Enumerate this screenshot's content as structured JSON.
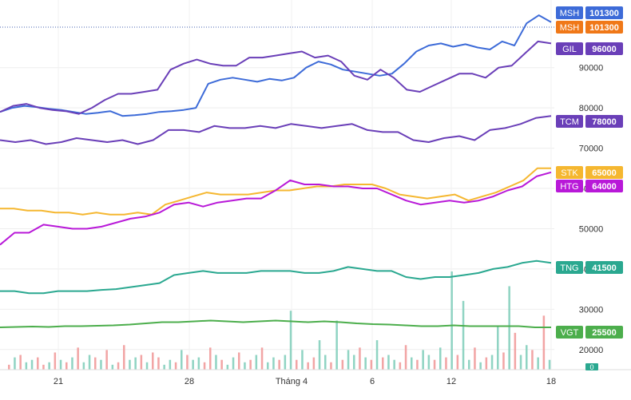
{
  "chart_data": {
    "type": "line",
    "x_ticks": [
      "21",
      "28",
      "Tháng 4",
      "6",
      "12",
      "18"
    ],
    "y_ticks": [
      20000,
      30000,
      40000,
      50000,
      60000,
      70000,
      80000,
      90000
    ],
    "y_tick_labels": [
      "20000",
      "30000",
      "40000",
      "50000",
      "60000",
      "70000",
      "80000",
      "90000"
    ],
    "ylim": [
      15000,
      106000
    ],
    "grid": true,
    "series": [
      {
        "name": "MSH",
        "color": "#3d6bd8",
        "last_value": "101300",
        "values": [
          79000,
          80000,
          80500,
          80200,
          79800,
          79500,
          79000,
          78500,
          78800,
          79200,
          78000,
          78200,
          78500,
          79000,
          79200,
          79500,
          80000,
          86000,
          87000,
          87500,
          87000,
          86500,
          87200,
          86800,
          87500,
          90000,
          91500,
          90800,
          89500,
          89000,
          88500,
          88000,
          88500,
          91000,
          94000,
          95500,
          96000,
          95200,
          95800,
          95000,
          94500,
          96500,
          95500,
          101000,
          103000,
          101300
        ]
      },
      {
        "name": "MSH",
        "color": "#f07818",
        "last_value": "101300",
        "values": [],
        "marker_only": true
      },
      {
        "name": "GIL",
        "color": "#6a3fb8",
        "last_value": "96000",
        "values": [
          79000,
          80500,
          81000,
          80000,
          79500,
          79200,
          78500,
          80000,
          82000,
          83500,
          83500,
          84000,
          84500,
          89500,
          91000,
          92000,
          91000,
          90500,
          90500,
          92500,
          92500,
          93000,
          93500,
          94000,
          92500,
          93000,
          91500,
          88000,
          87000,
          89500,
          87500,
          84500,
          84000,
          85500,
          87000,
          88500,
          88500,
          87500,
          90000,
          90500,
          93500,
          96500,
          96000
        ]
      },
      {
        "name": "TCM",
        "color": "#6a3fb8",
        "last_value": "78000",
        "values": [
          72000,
          71500,
          72000,
          71000,
          71500,
          72500,
          72000,
          71500,
          72000,
          71000,
          72000,
          74500,
          74500,
          74000,
          75500,
          75000,
          75000,
          75500,
          75000,
          76000,
          75500,
          75000,
          75500,
          76000,
          74500,
          74000,
          74000,
          72000,
          71500,
          72500,
          73000,
          72000,
          74500,
          75000,
          76000,
          77500,
          78000
        ]
      },
      {
        "name": "STK",
        "color": "#f5b730",
        "last_value": "65000",
        "values": [
          55000,
          55000,
          54500,
          54500,
          54000,
          54000,
          53500,
          54000,
          53500,
          53500,
          54000,
          53500,
          56000,
          57000,
          58000,
          59000,
          58500,
          58500,
          58500,
          59000,
          59500,
          59500,
          60000,
          60500,
          60500,
          61000,
          61000,
          61000,
          60000,
          58500,
          58000,
          57500,
          58000,
          58500,
          57000,
          58000,
          59000,
          60500,
          62000,
          65000,
          65000
        ]
      },
      {
        "name": "HTG",
        "color": "#b818d8",
        "last_value": "64000",
        "values": [
          46000,
          49000,
          49000,
          51000,
          50500,
          50000,
          50000,
          50500,
          51500,
          52500,
          53000,
          54000,
          56000,
          56500,
          55500,
          56500,
          57000,
          57500,
          57500,
          59500,
          62000,
          61000,
          61000,
          60500,
          60500,
          60000,
          60000,
          58500,
          57000,
          56000,
          56500,
          57000,
          56500,
          57000,
          58000,
          59500,
          60500,
          63000,
          64000
        ]
      },
      {
        "name": "TNG",
        "color": "#2aa890",
        "last_value": "41500",
        "values": [
          34500,
          34500,
          34000,
          34000,
          34500,
          34500,
          34500,
          34800,
          35000,
          35500,
          36000,
          36500,
          38500,
          39000,
          39500,
          39000,
          39000,
          39000,
          39500,
          39500,
          39500,
          39000,
          39000,
          39500,
          40500,
          40000,
          39500,
          39500,
          38000,
          37500,
          38000,
          38000,
          38500,
          39000,
          40000,
          40500,
          41500,
          42000,
          41500
        ]
      },
      {
        "name": "VGT",
        "color": "#4cae4c",
        "last_value": "25500",
        "values": [
          25500,
          25600,
          25700,
          25600,
          25800,
          25800,
          25900,
          26000,
          26200,
          26500,
          26800,
          26800,
          27000,
          27200,
          27000,
          26800,
          27000,
          27200,
          27000,
          26800,
          27000,
          26800,
          26500,
          26300,
          26200,
          26000,
          25800,
          25800,
          26000,
          25800,
          25800,
          25800,
          25800,
          25500,
          25500
        ]
      }
    ],
    "volume": {
      "values": [
        2,
        5,
        6,
        3,
        4,
        5,
        2,
        3,
        7,
        4,
        3,
        5,
        9,
        3,
        6,
        5,
        4,
        8,
        2,
        3,
        10,
        4,
        5,
        6,
        3,
        7,
        5,
        2,
        4,
        3,
        8,
        6,
        4,
        5,
        3,
        9,
        6,
        4,
        2,
        5,
        7,
        3,
        4,
        6,
        9,
        3,
        5,
        4,
        6,
        24,
        4,
        8,
        3,
        5,
        12,
        6,
        3,
        20,
        4,
        8,
        6,
        9,
        5,
        4,
        12,
        5,
        6,
        4,
        3,
        10,
        5,
        4,
        8,
        6,
        4,
        9,
        5,
        40,
        6,
        28,
        4,
        9,
        3,
        5,
        6,
        18,
        7,
        34,
        15,
        6,
        10,
        8,
        5,
        22,
        4
      ],
      "up": [
        0,
        1,
        0,
        1,
        1,
        0,
        0,
        1,
        0,
        1,
        0,
        1,
        0,
        1,
        1,
        0,
        1,
        0,
        1,
        0,
        0,
        1,
        1,
        0,
        1,
        0,
        0,
        1,
        1,
        0,
        1,
        0,
        1,
        1,
        0,
        0,
        1,
        0,
        1,
        1,
        0,
        1,
        0,
        1,
        0,
        1,
        1,
        0,
        1,
        1,
        0,
        1,
        0,
        0,
        1,
        1,
        0,
        1,
        0,
        1,
        1,
        0,
        1,
        0,
        1,
        0,
        1,
        1,
        0,
        0,
        1,
        0,
        1,
        1,
        0,
        1,
        0,
        1,
        0,
        1,
        1,
        0,
        1,
        0,
        1,
        1,
        0,
        1,
        0,
        1,
        1,
        0,
        1,
        0,
        1
      ],
      "last_label": "0",
      "up_color": "#7ccdb9",
      "down_color": "#f09595"
    },
    "crosshair_label": "101300"
  }
}
